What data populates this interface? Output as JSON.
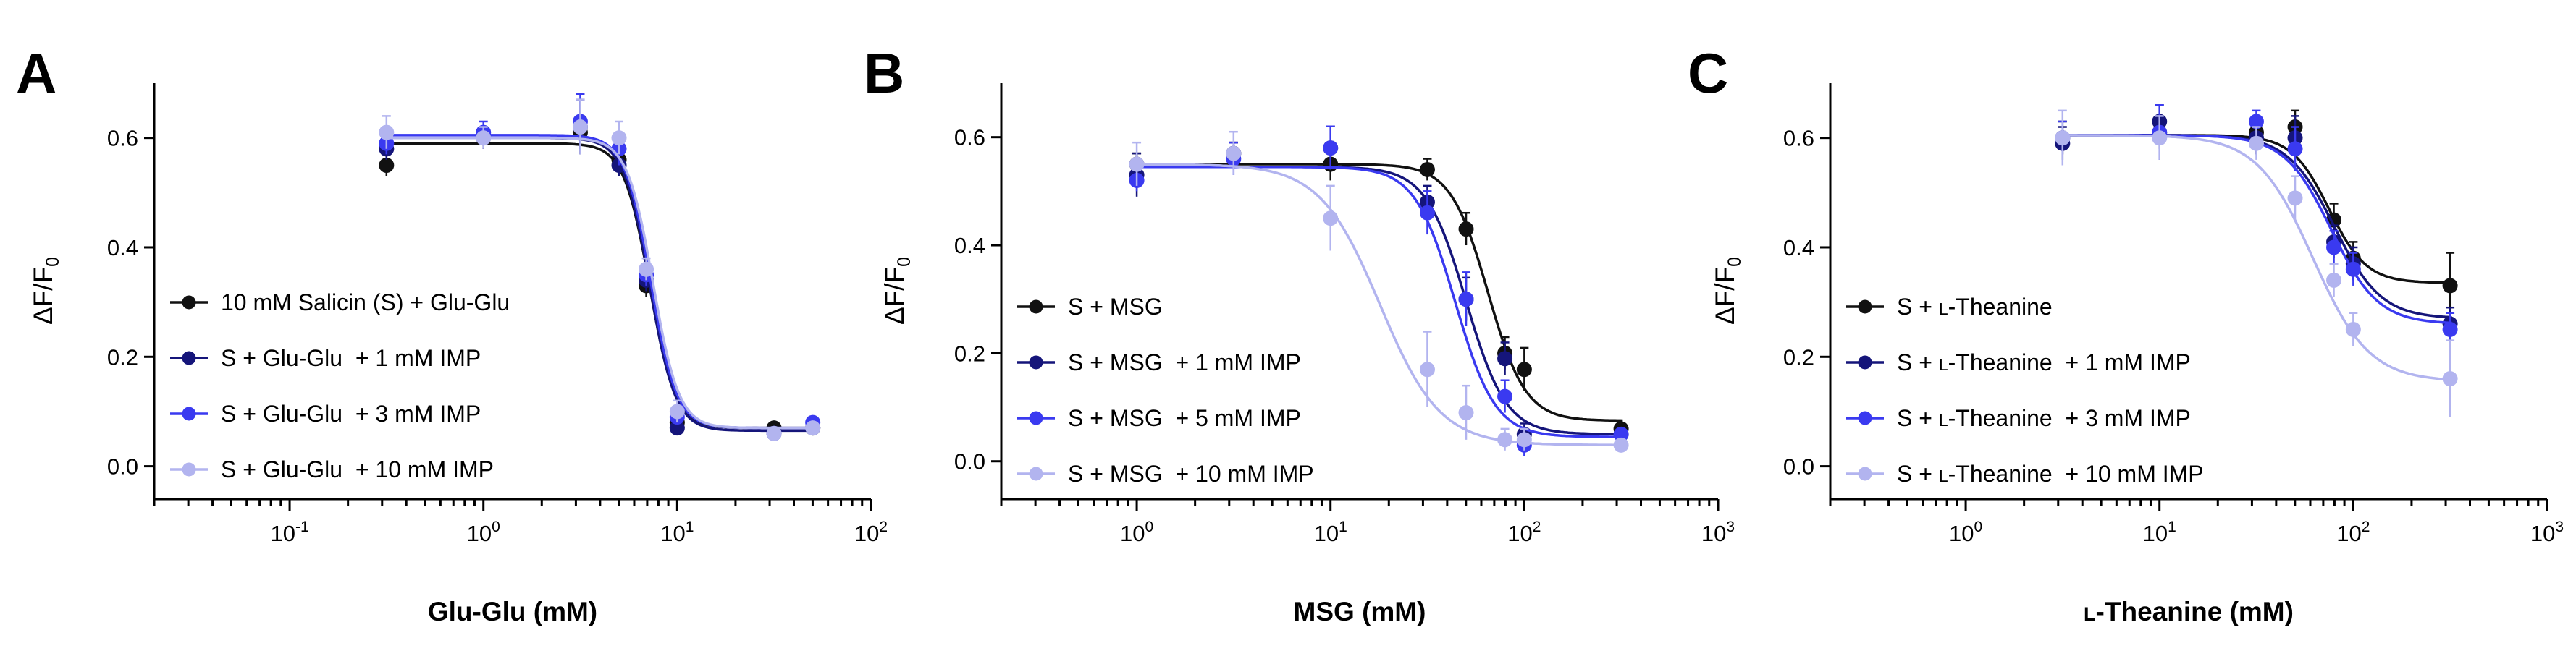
{
  "figure": {
    "y_label": "ΔF/F",
    "y_label_sub": "0"
  },
  "colors": {
    "black": "#111111",
    "navy": "#15157a",
    "blue": "#3a3af0",
    "light": "#b2b4ef"
  },
  "chart_data": [
    {
      "panel_letter": "A",
      "type": "scatter",
      "xscale": "log",
      "xlim": [
        0.02,
        100
      ],
      "ylim": [
        -0.06,
        0.7
      ],
      "x_ticks": [
        {
          "base": "10",
          "exp": "-1",
          "value": 0.1
        },
        {
          "base": "10",
          "exp": "0",
          "value": 1
        },
        {
          "base": "10",
          "exp": "1",
          "value": 10
        },
        {
          "base": "10",
          "exp": "2",
          "value": 100
        }
      ],
      "y_ticks": [
        "0.0",
        "0.2",
        "0.4",
        "0.6"
      ],
      "y_tick_values": [
        0.0,
        0.2,
        0.4,
        0.6
      ],
      "xlabel": "Glu-Glu (mM)",
      "ylabel": "ΔF/F0",
      "legend_position": "center-left",
      "series": [
        {
          "name": "10 mM Salicin (S) + Glu-Glu",
          "color": "black",
          "x": [
            0.316,
            1,
            3.16,
            5.01,
            6.92,
            10,
            31.6,
            50.1
          ],
          "y": [
            0.55,
            0.6,
            0.61,
            0.56,
            0.33,
            0.08,
            0.07,
            0.07
          ],
          "err": [
            0.02,
            0.02,
            0.03,
            0.02,
            0.02,
            0.01,
            0.01,
            0.01
          ],
          "fit": {
            "top": 0.59,
            "bottom": 0.07,
            "ec50": 7.2,
            "hill": 6.5
          }
        },
        {
          "name": "S + Glu-Glu  + 1 mM IMP",
          "color": "navy",
          "x": [
            0.316,
            1,
            3.16,
            5.01,
            6.92,
            10,
            31.6,
            50.1
          ],
          "y": [
            0.58,
            0.6,
            0.62,
            0.55,
            0.34,
            0.07,
            0.06,
            0.07
          ],
          "err": [
            0.02,
            0.02,
            0.05,
            0.02,
            0.02,
            0.01,
            0.01,
            0.01
          ],
          "fit": {
            "top": 0.6,
            "bottom": 0.065,
            "ec50": 7.2,
            "hill": 6.5
          }
        },
        {
          "name": "S + Glu-Glu  + 3 mM IMP",
          "color": "blue",
          "x": [
            0.316,
            1,
            3.16,
            5.01,
            6.92,
            10,
            31.6,
            50.1
          ],
          "y": [
            0.59,
            0.61,
            0.63,
            0.58,
            0.35,
            0.09,
            0.06,
            0.08
          ],
          "err": [
            0.02,
            0.02,
            0.05,
            0.03,
            0.02,
            0.01,
            0.01,
            0.01
          ],
          "fit": {
            "top": 0.605,
            "bottom": 0.07,
            "ec50": 7.3,
            "hill": 6.5
          }
        },
        {
          "name": "S + Glu-Glu  + 10 mM IMP",
          "color": "light",
          "x": [
            0.316,
            1,
            3.16,
            5.01,
            6.92,
            10,
            31.6,
            50.1
          ],
          "y": [
            0.61,
            0.6,
            0.62,
            0.6,
            0.36,
            0.1,
            0.06,
            0.07
          ],
          "err": [
            0.03,
            0.02,
            0.05,
            0.03,
            0.02,
            0.02,
            0.01,
            0.01
          ],
          "fit": {
            "top": 0.6,
            "bottom": 0.07,
            "ec50": 7.5,
            "hill": 6.5
          }
        }
      ]
    },
    {
      "panel_letter": "B",
      "type": "scatter",
      "xscale": "log",
      "xlim": [
        0.2,
        1000
      ],
      "ylim": [
        -0.07,
        0.7
      ],
      "x_ticks": [
        {
          "base": "10",
          "exp": "0",
          "value": 1
        },
        {
          "base": "10",
          "exp": "1",
          "value": 10
        },
        {
          "base": "10",
          "exp": "2",
          "value": 100
        },
        {
          "base": "10",
          "exp": "3",
          "value": 1000
        }
      ],
      "y_ticks": [
        "0.0",
        "0.2",
        "0.4",
        "0.6"
      ],
      "y_tick_values": [
        0.0,
        0.2,
        0.4,
        0.6
      ],
      "xlabel": "MSG (mM)",
      "ylabel": "ΔF/F0",
      "legend_position": "bottom-left",
      "series": [
        {
          "name": "S + MSG",
          "color": "black",
          "x": [
            1,
            3.16,
            10,
            31.6,
            50.1,
            79.4,
            100,
            316
          ],
          "y": [
            0.55,
            0.57,
            0.55,
            0.54,
            0.43,
            0.2,
            0.17,
            0.06
          ],
          "err": [
            0.02,
            0.02,
            0.03,
            0.02,
            0.03,
            0.03,
            0.04,
            0.01
          ],
          "fit": {
            "top": 0.55,
            "bottom": 0.075,
            "ec50": 65,
            "hill": 4.5
          }
        },
        {
          "name": "S + MSG  + 1 mM IMP",
          "color": "navy",
          "x": [
            1,
            3.16,
            10,
            31.6,
            50.1,
            79.4,
            100,
            316
          ],
          "y": [
            0.53,
            0.57,
            0.58,
            0.48,
            0.3,
            0.19,
            0.05,
            0.05
          ],
          "err": [
            0.04,
            0.02,
            0.04,
            0.03,
            0.04,
            0.03,
            0.02,
            0.01
          ],
          "fit": {
            "top": 0.545,
            "bottom": 0.05,
            "ec50": 50,
            "hill": 4.2
          }
        },
        {
          "name": "S + MSG  + 5 mM IMP",
          "color": "blue",
          "x": [
            1,
            3.16,
            10,
            31.6,
            50.1,
            79.4,
            100,
            316
          ],
          "y": [
            0.52,
            0.56,
            0.58,
            0.46,
            0.3,
            0.12,
            0.03,
            0.05
          ],
          "err": [
            0.02,
            0.03,
            0.04,
            0.04,
            0.05,
            0.03,
            0.02,
            0.01
          ],
          "fit": {
            "top": 0.545,
            "bottom": 0.045,
            "ec50": 44,
            "hill": 4.2
          }
        },
        {
          "name": "S + MSG  + 10 mM IMP",
          "color": "light",
          "x": [
            1,
            3.16,
            10,
            31.6,
            50.1,
            79.4,
            100,
            316
          ],
          "y": [
            0.55,
            0.57,
            0.45,
            0.17,
            0.09,
            0.04,
            0.04,
            0.03
          ],
          "err": [
            0.04,
            0.04,
            0.06,
            0.07,
            0.05,
            0.02,
            0.02,
            0.01
          ],
          "fit": {
            "top": 0.55,
            "bottom": 0.03,
            "ec50": 18,
            "hill": 2.8
          }
        }
      ]
    },
    {
      "panel_letter": "C",
      "type": "scatter",
      "xscale": "log",
      "xlim": [
        0.2,
        1000
      ],
      "ylim": [
        -0.06,
        0.7
      ],
      "x_ticks": [
        {
          "base": "10",
          "exp": "0",
          "value": 1
        },
        {
          "base": "10",
          "exp": "1",
          "value": 10
        },
        {
          "base": "10",
          "exp": "2",
          "value": 100
        },
        {
          "base": "10",
          "exp": "3",
          "value": 1000
        }
      ],
      "y_ticks": [
        "0.0",
        "0.2",
        "0.4",
        "0.6"
      ],
      "y_tick_values": [
        0.0,
        0.2,
        0.4,
        0.6
      ],
      "xlabel": "L-Theanine (mM)",
      "ylabel": "ΔF/F0",
      "legend_position": "bottom-left",
      "series": [
        {
          "name": "S + L-Theanine",
          "color": "black",
          "x": [
            3.16,
            10,
            31.6,
            50.1,
            79.4,
            100,
            316
          ],
          "y": [
            0.6,
            0.61,
            0.61,
            0.62,
            0.45,
            0.38,
            0.33
          ],
          "err": [
            0.03,
            0.03,
            0.02,
            0.03,
            0.03,
            0.03,
            0.06
          ],
          "fit": {
            "top": 0.605,
            "bottom": 0.335,
            "ec50": 75,
            "hill": 4.5
          }
        },
        {
          "name": "S + L-Theanine  + 1 mM IMP",
          "color": "navy",
          "x": [
            3.16,
            10,
            31.6,
            50.1,
            79.4,
            100,
            316
          ],
          "y": [
            0.59,
            0.63,
            0.6,
            0.6,
            0.41,
            0.37,
            0.26
          ],
          "err": [
            0.03,
            0.03,
            0.03,
            0.04,
            0.03,
            0.03,
            0.03
          ],
          "fit": {
            "top": 0.605,
            "bottom": 0.27,
            "ec50": 80,
            "hill": 3.6
          }
        },
        {
          "name": "S + L-Theanine  + 3 mM IMP",
          "color": "blue",
          "x": [
            3.16,
            10,
            31.6,
            50.1,
            79.4,
            100,
            316
          ],
          "y": [
            0.6,
            0.61,
            0.63,
            0.58,
            0.4,
            0.36,
            0.25
          ],
          "err": [
            0.03,
            0.05,
            0.02,
            0.04,
            0.03,
            0.03,
            0.03
          ],
          "fit": {
            "top": 0.605,
            "bottom": 0.26,
            "ec50": 77,
            "hill": 3.6
          }
        },
        {
          "name": "S + L-Theanine  + 10 mM IMP",
          "color": "light",
          "x": [
            3.16,
            10,
            31.6,
            50.1,
            79.4,
            100,
            316
          ],
          "y": [
            0.6,
            0.6,
            0.59,
            0.49,
            0.34,
            0.25,
            0.16
          ],
          "err": [
            0.05,
            0.04,
            0.03,
            0.04,
            0.03,
            0.03,
            0.07
          ],
          "fit": {
            "top": 0.605,
            "bottom": 0.155,
            "ec50": 62,
            "hill": 3.0
          }
        }
      ]
    }
  ]
}
